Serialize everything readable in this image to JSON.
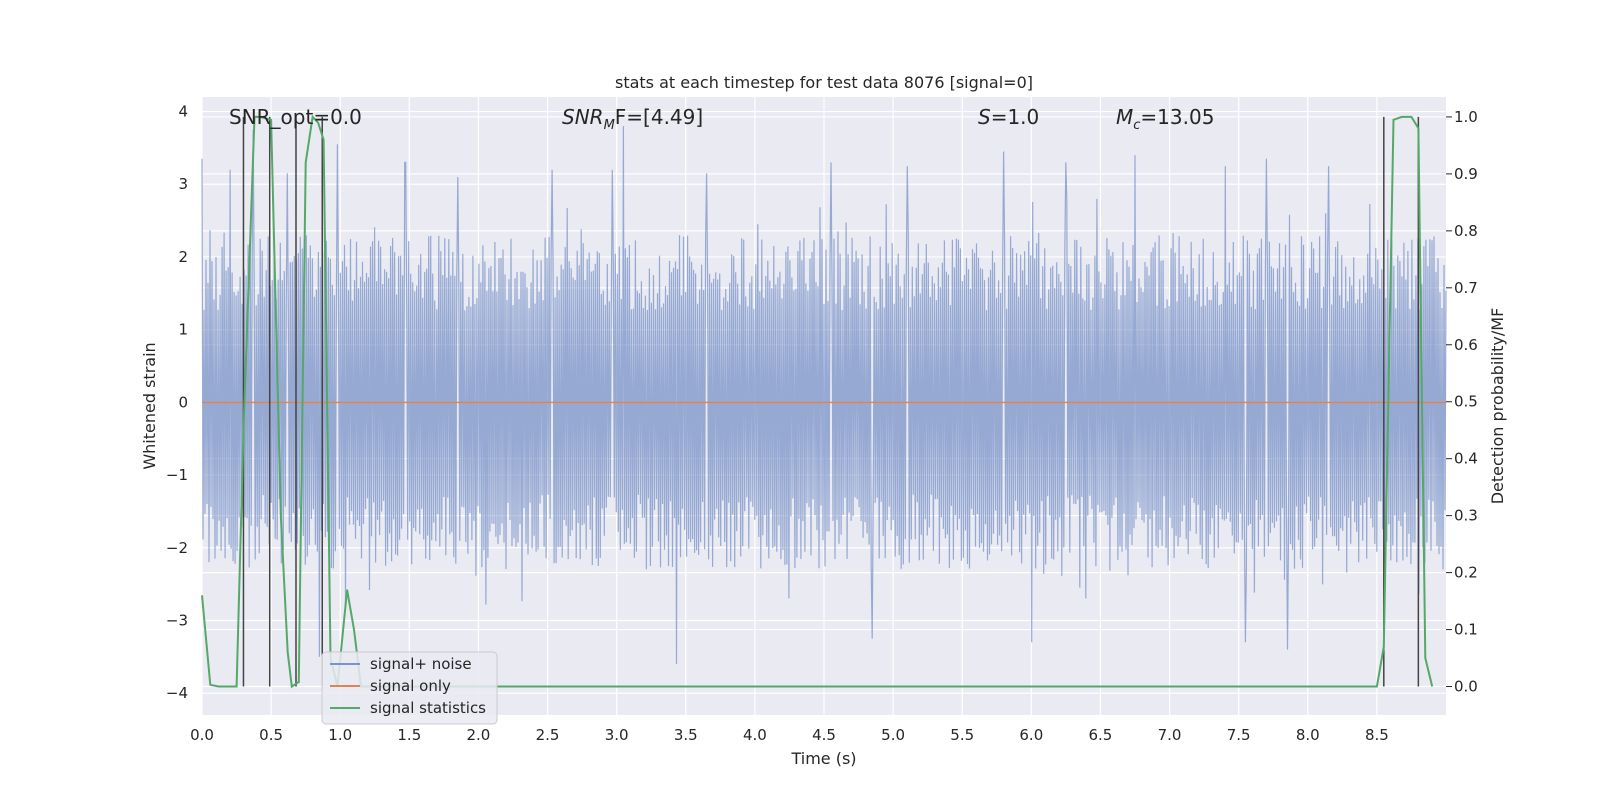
{
  "chart_data": {
    "type": "line",
    "title": "stats at each timestep for test data 8076 [signal=0]",
    "xlabel": "Time (s)",
    "ylabel_left": "Whitened strain",
    "ylabel_right": "Detection probability/MF",
    "xlim": [
      0.0,
      9.0
    ],
    "ylim_left": [
      -4.3,
      4.2
    ],
    "ylim_right": [
      -0.05,
      1.035
    ],
    "xticks": [
      "0.0",
      "0.5",
      "1.0",
      "1.5",
      "2.0",
      "2.5",
      "3.0",
      "3.5",
      "4.0",
      "4.5",
      "5.0",
      "5.5",
      "6.0",
      "6.5",
      "7.0",
      "7.5",
      "8.0",
      "8.5"
    ],
    "yticks_left": [
      "4",
      "3",
      "2",
      "1",
      "0",
      "−1",
      "−2",
      "−3",
      "−4"
    ],
    "yticks_right": [
      "1.0",
      "0.9",
      "0.8",
      "0.7",
      "0.6",
      "0.5",
      "0.4",
      "0.3",
      "0.2",
      "0.1",
      "0.0"
    ],
    "grid": true,
    "legend_position": "lower-left",
    "annotations": {
      "snr_opt": "SNR_opt=0.0",
      "snr_mf_sym": "SNR",
      "snr_mf_sub": "M",
      "snr_mf_rest": "F=[4.49]",
      "s_sym": "S",
      "s_val": "=1.0",
      "mc_sym": "M",
      "mc_sub": "c",
      "mc_val": "=13.05"
    },
    "vlines_x": [
      0.3,
      0.49,
      0.68,
      0.87,
      8.55,
      8.8
    ],
    "series": [
      {
        "name": "signal+ noise",
        "axis": "left",
        "color": "#7a93c8",
        "style": "noise",
        "amplitude_typical": 2.3,
        "peak_values": [
          [
            0.0,
            3.35
          ],
          [
            0.2,
            3.2
          ],
          [
            0.37,
            3.75
          ],
          [
            0.62,
            3.15
          ],
          [
            0.98,
            3.55
          ],
          [
            1.47,
            3.3
          ],
          [
            1.85,
            3.1
          ],
          [
            2.53,
            3.2
          ],
          [
            2.97,
            3.2
          ],
          [
            3.05,
            3.8
          ],
          [
            3.65,
            3.15
          ],
          [
            4.55,
            3.3
          ],
          [
            5.1,
            3.25
          ],
          [
            5.8,
            3.45
          ],
          [
            6.25,
            3.3
          ],
          [
            6.75,
            3.4
          ],
          [
            7.4,
            3.25
          ],
          [
            7.7,
            3.35
          ],
          [
            8.15,
            3.25
          ],
          [
            0.85,
            -3.5
          ],
          [
            3.43,
            -3.6
          ],
          [
            4.85,
            -3.25
          ],
          [
            6.0,
            -3.3
          ],
          [
            7.55,
            -3.3
          ],
          [
            7.85,
            -3.4
          ]
        ]
      },
      {
        "name": "signal only",
        "axis": "left",
        "color": "#dd8452",
        "values_constant": 0.0
      },
      {
        "name": "signal statistics",
        "axis": "right",
        "color": "#55a868",
        "x": [
          0.0,
          0.06,
          0.12,
          0.25,
          0.3,
          0.38,
          0.42,
          0.5,
          0.57,
          0.62,
          0.65,
          0.7,
          0.75,
          0.8,
          0.84,
          0.88,
          0.93,
          0.98,
          1.05,
          1.1,
          1.15,
          1.5,
          2.0,
          3.0,
          4.0,
          5.0,
          6.0,
          7.0,
          8.0,
          8.5,
          8.55,
          8.62,
          8.68,
          8.75,
          8.8,
          8.85,
          8.9
        ],
        "y": [
          0.16,
          0.003,
          0.0,
          0.0,
          0.45,
          1.0,
          1.0,
          0.995,
          0.3,
          0.06,
          0.0,
          0.008,
          0.92,
          1.0,
          0.99,
          0.96,
          0.05,
          0.0,
          0.17,
          0.1,
          0.0,
          0.0,
          0.0,
          0.0,
          0.0,
          0.0,
          0.0,
          0.0,
          0.0,
          0.0,
          0.07,
          0.995,
          1.0,
          1.0,
          0.98,
          0.05,
          0.0
        ]
      }
    ]
  }
}
